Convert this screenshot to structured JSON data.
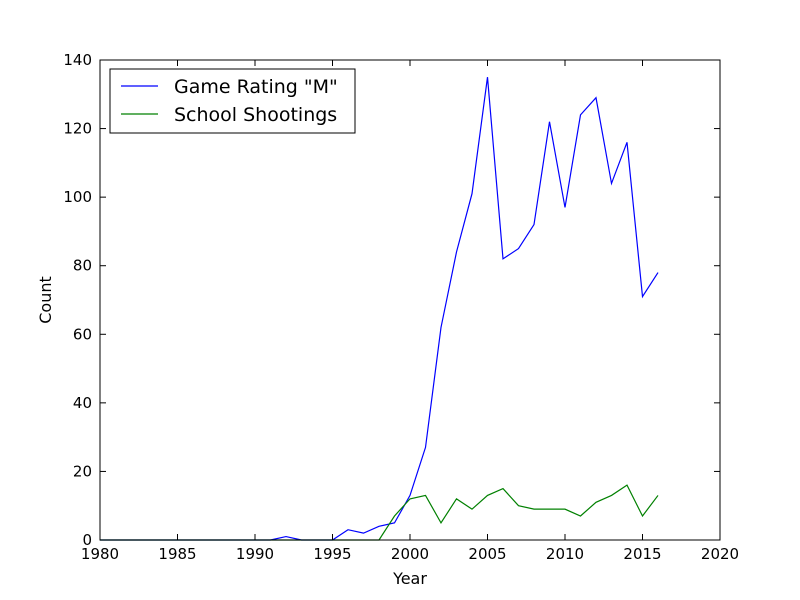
{
  "chart_data": {
    "type": "line",
    "title": "",
    "xlabel": "Year",
    "ylabel": "Count",
    "xlim": [
      1980,
      2020
    ],
    "ylim": [
      0,
      140
    ],
    "xticks": [
      1980,
      1985,
      1990,
      1995,
      2000,
      2005,
      2010,
      2015,
      2020
    ],
    "yticks": [
      0,
      20,
      40,
      60,
      80,
      100,
      120,
      140
    ],
    "grid": false,
    "legend_position": "top-left",
    "series": [
      {
        "name": "Game Rating \"M\"",
        "color": "#0000ff",
        "points": [
          [
            1980,
            0
          ],
          [
            1981,
            0
          ],
          [
            1982,
            0
          ],
          [
            1983,
            0
          ],
          [
            1984,
            0
          ],
          [
            1985,
            0
          ],
          [
            1986,
            0
          ],
          [
            1987,
            0
          ],
          [
            1988,
            0
          ],
          [
            1989,
            0
          ],
          [
            1990,
            0
          ],
          [
            1991,
            0
          ],
          [
            1992,
            1
          ],
          [
            1993,
            0
          ],
          [
            1994,
            0
          ],
          [
            1995,
            0
          ],
          [
            1996,
            3
          ],
          [
            1997,
            2
          ],
          [
            1998,
            4
          ],
          [
            1999,
            5
          ],
          [
            2000,
            13
          ],
          [
            2001,
            27
          ],
          [
            2002,
            62
          ],
          [
            2003,
            84
          ],
          [
            2004,
            101
          ],
          [
            2005,
            135
          ],
          [
            2006,
            82
          ],
          [
            2007,
            85
          ],
          [
            2008,
            92
          ],
          [
            2009,
            122
          ],
          [
            2010,
            97
          ],
          [
            2011,
            124
          ],
          [
            2012,
            129
          ],
          [
            2013,
            104
          ],
          [
            2014,
            116
          ],
          [
            2015,
            71
          ],
          [
            2016,
            78
          ]
        ]
      },
      {
        "name": "School Shootings",
        "color": "#008000",
        "points": [
          [
            1980,
            0
          ],
          [
            1981,
            0
          ],
          [
            1982,
            0
          ],
          [
            1983,
            0
          ],
          [
            1984,
            0
          ],
          [
            1985,
            0
          ],
          [
            1986,
            0
          ],
          [
            1987,
            0
          ],
          [
            1988,
            0
          ],
          [
            1989,
            0
          ],
          [
            1990,
            0
          ],
          [
            1991,
            0
          ],
          [
            1992,
            0
          ],
          [
            1993,
            0
          ],
          [
            1994,
            0
          ],
          [
            1995,
            0
          ],
          [
            1996,
            0
          ],
          [
            1997,
            0
          ],
          [
            1998,
            0
          ],
          [
            1999,
            7
          ],
          [
            2000,
            12
          ],
          [
            2001,
            13
          ],
          [
            2002,
            5
          ],
          [
            2003,
            12
          ],
          [
            2004,
            9
          ],
          [
            2005,
            13
          ],
          [
            2006,
            15
          ],
          [
            2007,
            10
          ],
          [
            2008,
            9
          ],
          [
            2009,
            9
          ],
          [
            2010,
            9
          ],
          [
            2011,
            7
          ],
          [
            2012,
            11
          ],
          [
            2013,
            13
          ],
          [
            2014,
            16
          ],
          [
            2015,
            7
          ],
          [
            2016,
            13
          ]
        ]
      }
    ]
  }
}
